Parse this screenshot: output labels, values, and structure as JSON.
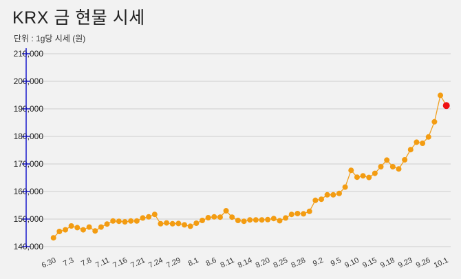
{
  "chart_data": {
    "type": "line",
    "title": "KRX 금 현물 시세",
    "subtitle": "단위 : 1g당 시세 (원)",
    "xlabel": "",
    "ylabel": "",
    "ylim": [
      140000,
      210000
    ],
    "yticks": [
      "140,000",
      "150,000",
      "160,000",
      "170,000",
      "180,000",
      "190,000",
      "200,000",
      "210,000"
    ],
    "ytick_values": [
      140000,
      150000,
      160000,
      170000,
      180000,
      190000,
      200000,
      210000
    ],
    "xtick_labels": [
      "6.30",
      "7.3",
      "7.8",
      "7.11",
      "7.16",
      "7.21",
      "7.24",
      "7.29",
      "8.1",
      "8.6",
      "8.11",
      "8.14",
      "8.20",
      "8.25",
      "8.28",
      "9.2",
      "9.5",
      "9.10",
      "9.15",
      "9.18",
      "9.23",
      "9.26",
      "10.1"
    ],
    "grid": true,
    "line_color": "#f0a020",
    "marker_color": "#f39c12",
    "highlight_color": "#ee1111",
    "series": [
      {
        "name": "KRX 금 현물 시세",
        "values": [
          143200,
          145500,
          146100,
          147500,
          146900,
          146100,
          147100,
          145700,
          147100,
          148200,
          149300,
          149200,
          149000,
          149300,
          149300,
          150400,
          150800,
          151700,
          148300,
          148600,
          148300,
          148400,
          147900,
          147400,
          148500,
          149500,
          150500,
          150800,
          150700,
          153000,
          150700,
          149500,
          149200,
          149700,
          149700,
          149700,
          149800,
          150200,
          149400,
          150400,
          151700,
          152000,
          151900,
          152800,
          156800,
          157200,
          158800,
          158800,
          159300,
          161600,
          167700,
          165200,
          165700,
          165100,
          166600,
          169000,
          171400,
          169000,
          168200,
          171500,
          175200,
          177900,
          177500,
          179800,
          185300,
          194900,
          191200
        ]
      }
    ]
  }
}
